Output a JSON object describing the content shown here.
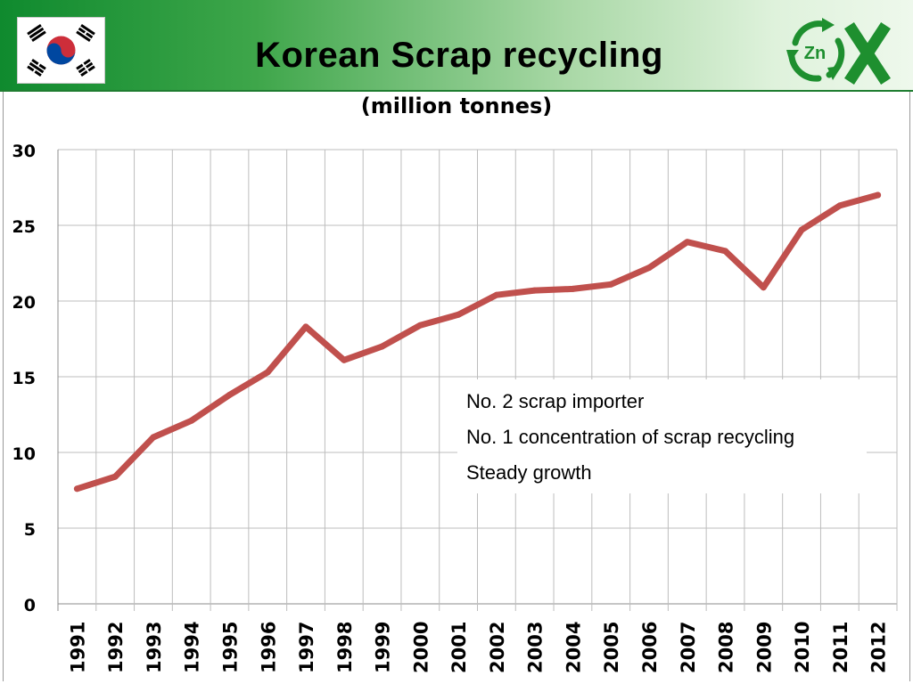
{
  "header": {
    "title": "Korean Scrap recycling",
    "flag_icon": "south-korea-flag-icon",
    "logo_icon": "zinc-recycling-logo-icon",
    "logo_text": "Zn"
  },
  "annotations": [
    "No. 2 scrap importer",
    "No. 1 concentration of scrap recycling",
    "Steady growth"
  ],
  "colors": {
    "line": "#c0504d",
    "header_green": "#0f8a2e",
    "grid": "#bdbdbd"
  },
  "chart_data": {
    "type": "line",
    "title": "(million tonnes)",
    "xlabel": "",
    "ylabel": "",
    "categories": [
      "1991",
      "1992",
      "1993",
      "1994",
      "1995",
      "1996",
      "1997",
      "1998",
      "1999",
      "2000",
      "2001",
      "2002",
      "2003",
      "2004",
      "2005",
      "2006",
      "2007",
      "2008",
      "2009",
      "2010",
      "2011",
      "2012"
    ],
    "series": [
      {
        "values": [
          7.6,
          8.4,
          11.0,
          12.1,
          13.8,
          15.3,
          18.3,
          16.1,
          17.0,
          18.4,
          19.1,
          20.4,
          20.7,
          20.8,
          21.1,
          22.2,
          23.9,
          23.3,
          20.9,
          24.7,
          26.3,
          27.0
        ]
      }
    ],
    "ylim": [
      0,
      30
    ],
    "yticks": [
      "0",
      "5",
      "10",
      "15",
      "20",
      "25",
      "30"
    ],
    "grid": true,
    "legend": "none"
  }
}
